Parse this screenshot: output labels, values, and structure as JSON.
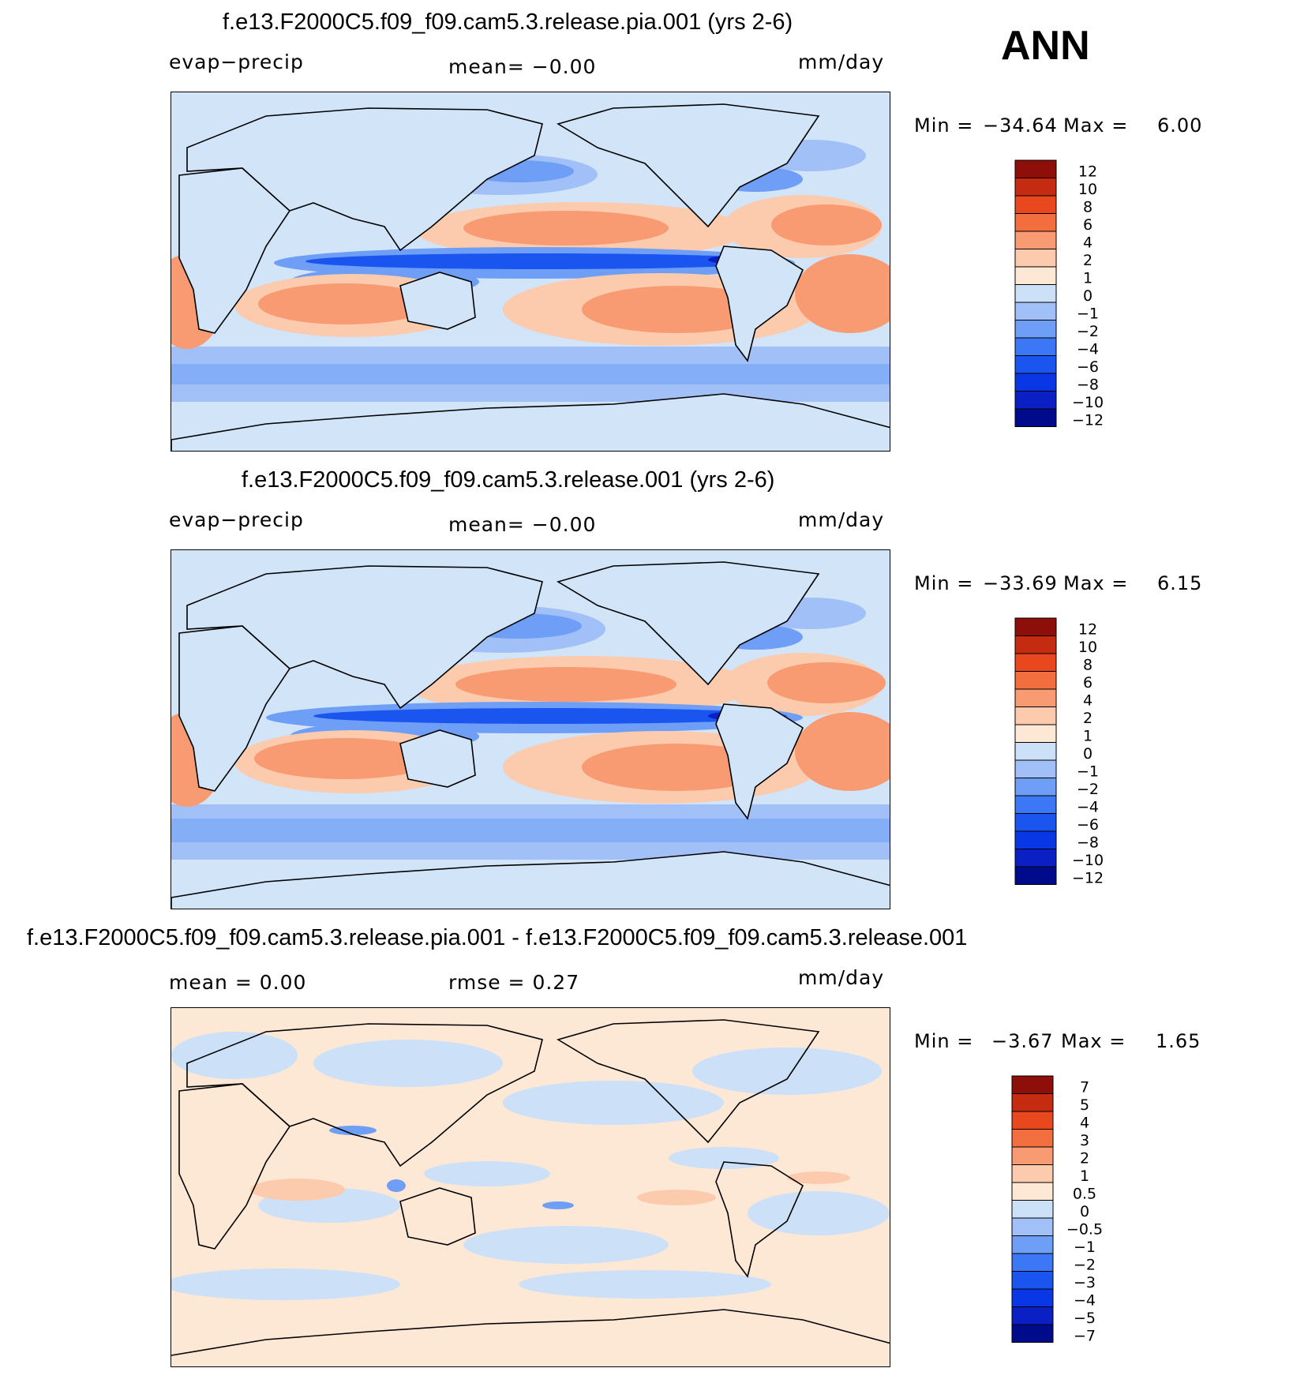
{
  "season": "ANN",
  "colors": {
    "ramp12": [
      "#000b8c",
      "#0a1fc4",
      "#0a37e6",
      "#1a55f0",
      "#3c78f5",
      "#6e9ef5",
      "#a0c0f7",
      "#cce0f8",
      "#fde8d6",
      "#fccbae",
      "#f89b73",
      "#f26e3e",
      "#e9481f",
      "#c42b10",
      "#8e0e0a"
    ],
    "land_line": "#000000",
    "ocean_bg": "#d1e4f8"
  },
  "panels": [
    {
      "title": "f.e13.F2000C5.f09_f09.cam5.3.release.pia.001 (yrs 2-6)",
      "left_label": "evap−precip",
      "center_label": "mean=   −0.00",
      "right_label": "mm/day",
      "min_label": "Min  =",
      "min_value": "−34.64",
      "max_label": "Max  =",
      "max_value": "6.00",
      "colorbar_levels": [
        "12",
        "10",
        "8",
        "6",
        "4",
        "2",
        "1",
        "0",
        "−1",
        "−2",
        "−4",
        "−6",
        "−8",
        "−10",
        "−12"
      ]
    },
    {
      "title": "f.e13.F2000C5.f09_f09.cam5.3.release.001 (yrs 2-6)",
      "left_label": "evap−precip",
      "center_label": "mean=   −0.00",
      "right_label": "mm/day",
      "min_label": "Min  =",
      "min_value": "−33.69",
      "max_label": "Max  =",
      "max_value": "6.15",
      "colorbar_levels": [
        "12",
        "10",
        "8",
        "6",
        "4",
        "2",
        "1",
        "0",
        "−1",
        "−2",
        "−4",
        "−6",
        "−8",
        "−10",
        "−12"
      ]
    },
    {
      "title": "f.e13.F2000C5.f09_f09.cam5.3.release.pia.001 - f.e13.F2000C5.f09_f09.cam5.3.release.001",
      "left_label": "mean =     0.00",
      "center_label": "rmse =     0.27",
      "right_label": "mm/day",
      "min_label": "Min  =",
      "min_value": "−3.67",
      "max_label": "Max  =",
      "max_value": "1.65",
      "colorbar_levels": [
        "7",
        "5",
        "4",
        "3",
        "2",
        "1",
        "0.5",
        "0",
        "−0.5",
        "−1",
        "−2",
        "−3",
        "−4",
        "−5",
        "−7"
      ]
    }
  ]
}
